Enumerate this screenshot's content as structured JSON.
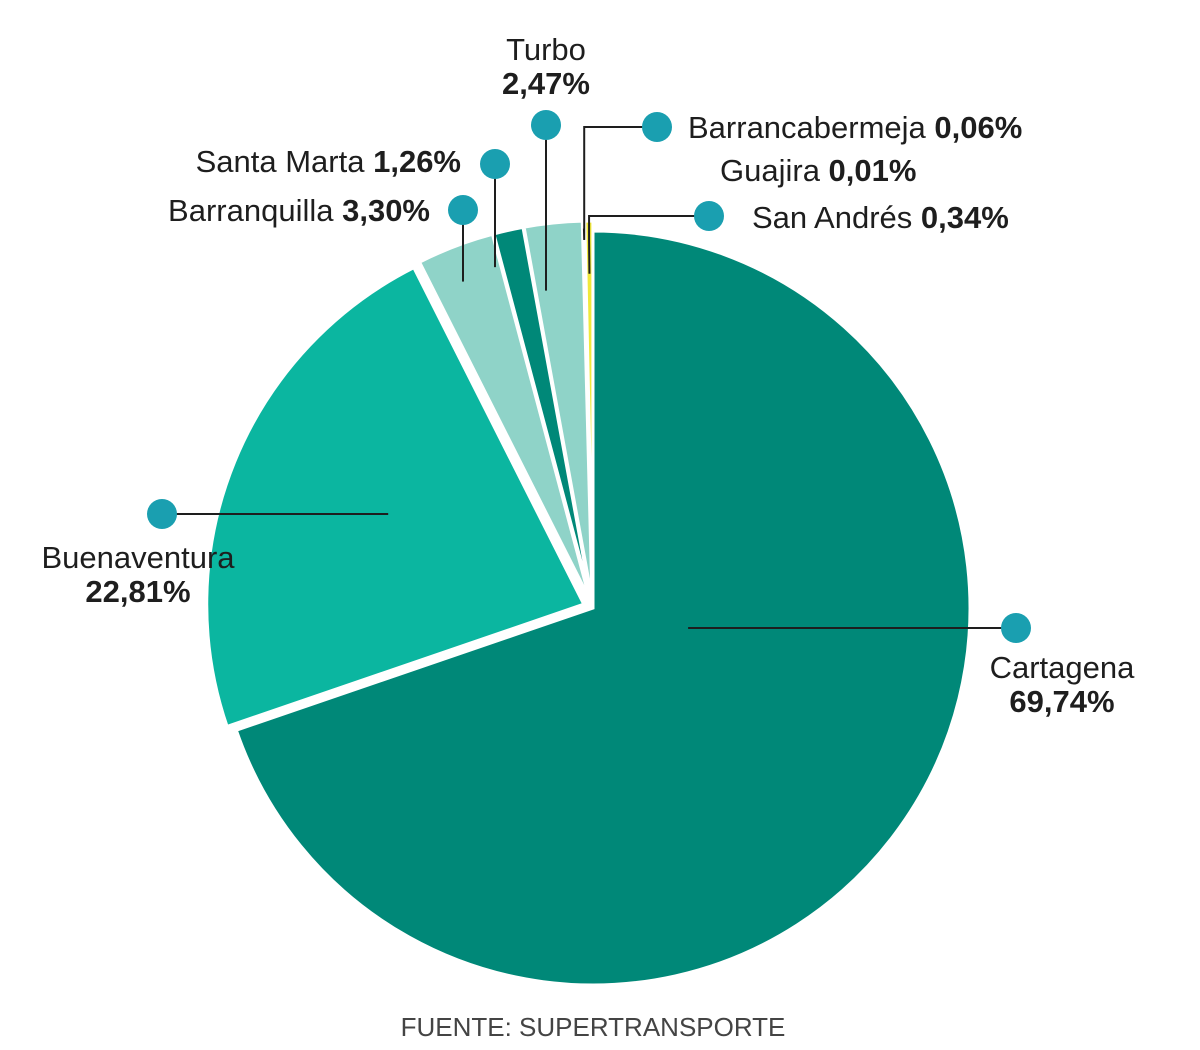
{
  "chart_data": {
    "type": "pie",
    "unit": "%",
    "slices": [
      {
        "name": "Cartagena",
        "value": 69.74,
        "label": "69,74%",
        "color": "#008878"
      },
      {
        "name": "Buenaventura",
        "value": 22.81,
        "label": "22,81%",
        "color": "#0bb6a0"
      },
      {
        "name": "Barranquilla",
        "value": 3.3,
        "label": "3,30%",
        "color": "#8fd3c8"
      },
      {
        "name": "Santa Marta",
        "value": 1.26,
        "label": "1,26%",
        "color": "#008878"
      },
      {
        "name": "Turbo",
        "value": 2.47,
        "label": "2,47%",
        "color": "#8fd3c8"
      },
      {
        "name": "Barrancabermeja",
        "value": 0.06,
        "label": "0,06%",
        "color": "#0bb6a0"
      },
      {
        "name": "Guajira",
        "value": 0.01,
        "label": "0,01%",
        "color": "#008878"
      },
      {
        "name": "San Andrés",
        "value": 0.34,
        "label": "0,34%",
        "color": "#f0e83a"
      }
    ],
    "marker_color": "#1a9fb0",
    "source": "FUENTE: SUPERTRANSPORTE"
  }
}
